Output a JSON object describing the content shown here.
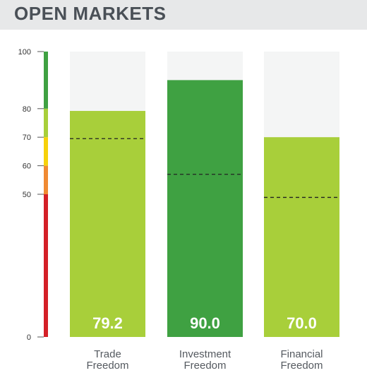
{
  "header": {
    "title": "OPEN MARKETS"
  },
  "chart_data": {
    "type": "bar",
    "title": "OPEN MARKETS",
    "xlabel": "",
    "ylabel": "",
    "ylim": [
      0,
      100
    ],
    "yticks": [
      0,
      50,
      60,
      70,
      80,
      100
    ],
    "bands": [
      {
        "from": 0,
        "to": 50,
        "color": "#d42027"
      },
      {
        "from": 50,
        "to": 60,
        "color": "#f08a32"
      },
      {
        "from": 60,
        "to": 70,
        "color": "#f6d10b"
      },
      {
        "from": 70,
        "to": 80,
        "color": "#a8cf3a"
      },
      {
        "from": 80,
        "to": 100,
        "color": "#3fa142"
      }
    ],
    "categories": [
      {
        "line1": "Trade",
        "line2": "Freedom"
      },
      {
        "line1": "Investment",
        "line2": "Freedom"
      },
      {
        "line1": "Financial",
        "line2": "Freedom"
      }
    ],
    "values": [
      79.2,
      90.0,
      70.0
    ],
    "value_labels": [
      "79.2",
      "90.0",
      "70.0"
    ],
    "reference_values": [
      69.5,
      57.0,
      48.9
    ],
    "bar_colors": [
      "#a8cf3a",
      "#3fa142",
      "#a8cf3a"
    ],
    "track_color": "#f4f5f5",
    "reference_style": "dashed"
  }
}
